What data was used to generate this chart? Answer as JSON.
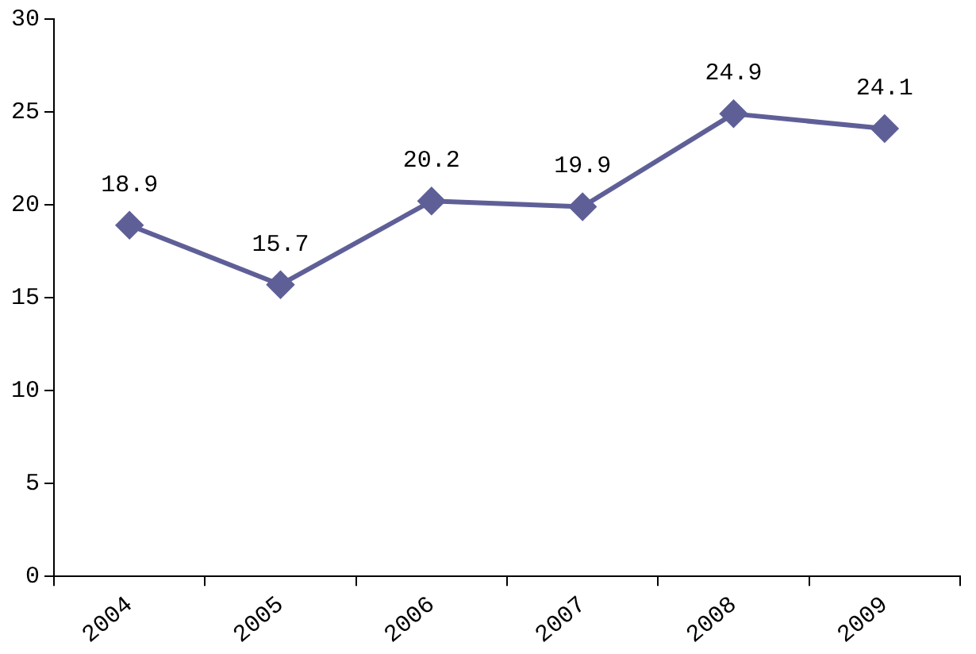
{
  "chart_data": {
    "type": "line",
    "categories": [
      "2004",
      "2005",
      "2006",
      "2007",
      "2008",
      "2009"
    ],
    "series": [
      {
        "color": "#5f5f98",
        "values": [
          18.9,
          15.7,
          20.2,
          19.9,
          24.9,
          24.1
        ]
      }
    ],
    "ylim": [
      0,
      30
    ],
    "yticks": [
      0,
      5,
      10,
      15,
      20,
      25,
      30
    ],
    "grid": false,
    "legend": false,
    "marker": "diamond",
    "line_style": "solid",
    "data_labels": true
  }
}
